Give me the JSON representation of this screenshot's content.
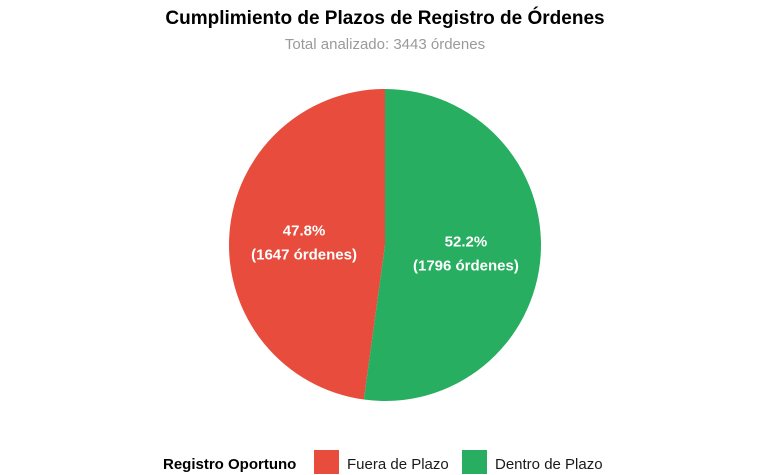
{
  "chart_data": {
    "type": "pie",
    "title": "Cumplimiento de Plazos de Registro de Órdenes",
    "subtitle": "Total analizado: 3443 órdenes",
    "legend_title": "Registro Oportuno",
    "legend_position": "bottom",
    "slices": [
      {
        "name": "Fuera de Plazo",
        "value": 1647,
        "percent_label": "47.8%",
        "count_label": "(1647 órdenes)",
        "color": "#E74C3C"
      },
      {
        "name": "Dentro de Plazo",
        "value": 1796,
        "percent_label": "52.2%",
        "count_label": "(1796 órdenes)",
        "color": "#27AE60"
      }
    ]
  }
}
